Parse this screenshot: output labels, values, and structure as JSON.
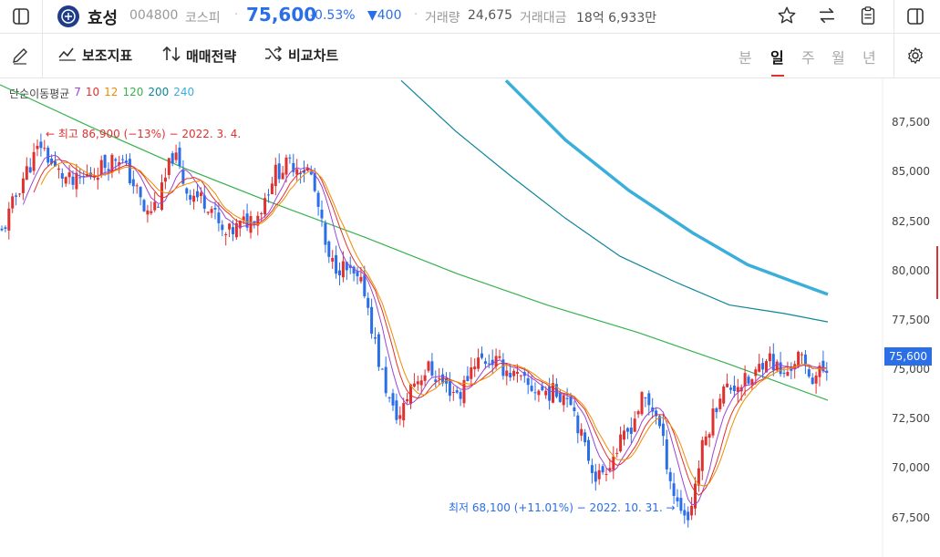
{
  "header": {
    "stock_name": "효성",
    "stock_code": "004800",
    "market": "코스피",
    "price": "75,600",
    "change_pct": "-0.53%",
    "change_amt": "▼400",
    "volume_label": "거래량",
    "volume": "24,675",
    "amount_label": "거래대금",
    "amount": "18억 6,933만"
  },
  "toolbar": {
    "indicators": "보조지표",
    "trading_strategy": "매매전략",
    "compare_chart": "비교차트",
    "periods": [
      "분",
      "일",
      "주",
      "월",
      "년"
    ],
    "active_period": "일"
  },
  "legend": {
    "title": "단순이동평균",
    "items": [
      {
        "label": "7",
        "color": "#9b45d6"
      },
      {
        "label": "10",
        "color": "#e03131"
      },
      {
        "label": "12",
        "color": "#f08c00"
      },
      {
        "label": "120",
        "color": "#37b24d"
      },
      {
        "label": "200",
        "color": "#0c8599"
      },
      {
        "label": "240",
        "color": "#3bafda"
      }
    ]
  },
  "annotations": {
    "high": "← 최고 86,900 (−13%) − 2022. 3. 4.",
    "low": "최저 68,100 (+11.01%) − 2022. 10. 31. →"
  },
  "colors": {
    "up": "#e03131",
    "down": "#2a6ee8",
    "accent": "#2a6ee8"
  },
  "chart_data": {
    "type": "candlestick",
    "y_ticks": [
      "87,500",
      "85,000",
      "82,500",
      "80,000",
      "77,500",
      "75,000",
      "72,500",
      "70,000",
      "67,500"
    ],
    "ylim": [
      66700,
      89300
    ],
    "last_price_label": "75,600",
    "high": 86900,
    "low": 68100,
    "ma_series": [
      {
        "name": "120",
        "color": "#37b24d",
        "points": [
          [
            0,
            89000
          ],
          [
            100,
            87000
          ],
          [
            200,
            85100
          ],
          [
            300,
            83400
          ],
          [
            400,
            81800
          ],
          [
            500,
            80100
          ],
          [
            600,
            78600
          ],
          [
            700,
            77300
          ],
          [
            800,
            75800
          ],
          [
            908,
            74100
          ]
        ]
      },
      {
        "name": "200",
        "color": "#0c8599",
        "points": [
          [
            440,
            89200
          ],
          [
            500,
            86800
          ],
          [
            560,
            84700
          ],
          [
            620,
            82700
          ],
          [
            680,
            80900
          ],
          [
            740,
            79700
          ],
          [
            800,
            78600
          ],
          [
            860,
            78200
          ],
          [
            908,
            77800
          ]
        ]
      },
      {
        "name": "240",
        "color": "#3bafda",
        "points": [
          [
            555,
            89200
          ],
          [
            620,
            86400
          ],
          [
            690,
            84000
          ],
          [
            760,
            82000
          ],
          [
            820,
            80500
          ],
          [
            870,
            79700
          ],
          [
            908,
            79100
          ]
        ]
      }
    ]
  }
}
